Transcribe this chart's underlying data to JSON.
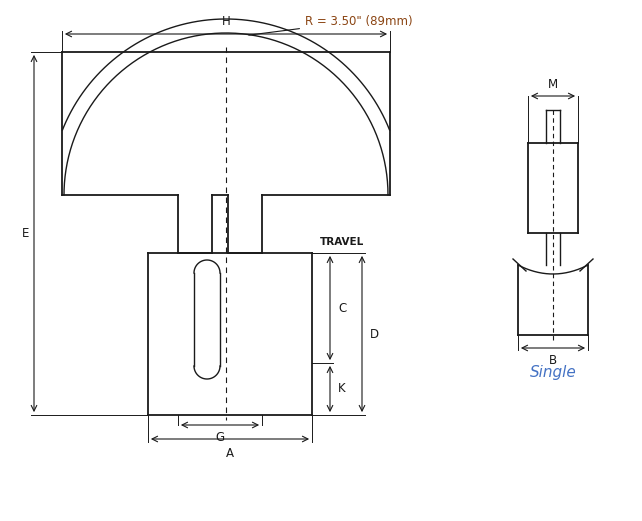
{
  "bg_color": "#ffffff",
  "line_color": "#1a1a1a",
  "dim_color": "#1a1a1a",
  "radius_text_color": "#8B4513",
  "single_text_color": "#4472C4",
  "radius_label": "R = 3.50\" (89mm)",
  "travel_label": "TRAVEL",
  "single_label": "Single",
  "figsize": [
    6.42,
    5.21
  ],
  "dpi": 100
}
